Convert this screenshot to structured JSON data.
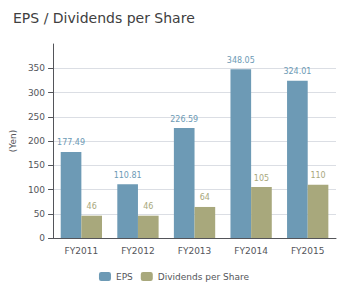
{
  "chart_data": {
    "type": "bar",
    "title": "EPS / Dividends per Share",
    "ylabel": "(Yen)",
    "categories": [
      "FY2011",
      "FY2012",
      "FY2013",
      "FY2014",
      "FY2015"
    ],
    "series": [
      {
        "name": "EPS",
        "color": "#6d9ab5",
        "values": [
          177.49,
          110.81,
          226.59,
          348.05,
          324.01
        ]
      },
      {
        "name": "Dividends per Share",
        "color": "#a8a87c",
        "values": [
          46,
          46,
          64,
          105,
          110
        ]
      }
    ],
    "ylim": [
      0,
      400
    ],
    "yticks": [
      0,
      50,
      100,
      150,
      200,
      250,
      300,
      350
    ],
    "grid": true,
    "legend": "bottom",
    "data_labels": true
  }
}
